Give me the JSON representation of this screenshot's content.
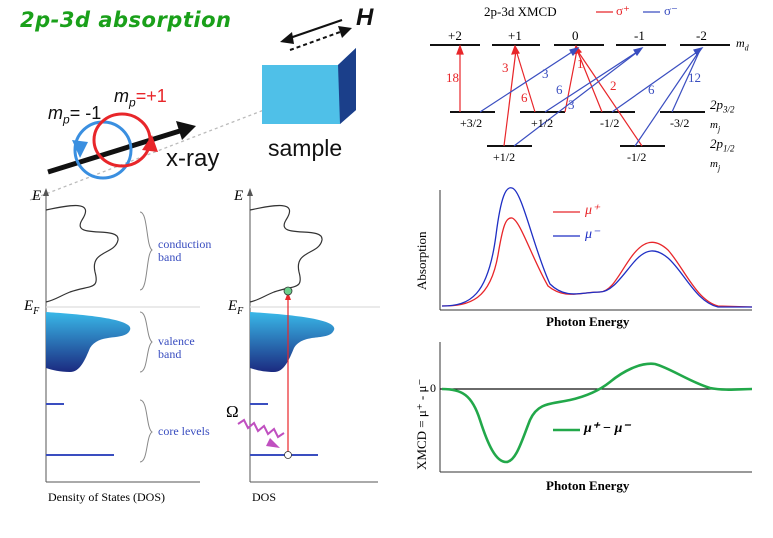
{
  "title": "2p-3d absorption",
  "field_label": "H",
  "x_ray_label": "x-ray",
  "sample_label": "sample",
  "mp_minus": "m",
  "mp_minus_sub": "p",
  "mp_minus_val": "= -1",
  "mp_plus": "m",
  "mp_plus_sub": "p",
  "mp_plus_val": "=+1",
  "level_diagram": {
    "title": "2p-3d XMCD",
    "legend_plus": "σ⁺",
    "legend_minus": "σ⁻",
    "md_levels": [
      "+2",
      "+1",
      "0",
      "-1",
      "-2"
    ],
    "md_label": "m",
    "md_sub": "d",
    "p32_levels": [
      "+3/2",
      "+1/2",
      "-1/2",
      "-3/2"
    ],
    "p32_label": "2p",
    "p32_sub": "3/2",
    "p12_levels": [
      "+1/2",
      "-1/2"
    ],
    "p12_label": "2p",
    "p12_sub": "1/2",
    "mj_label": "m",
    "mj_sub": "j",
    "red_numbers": [
      "18",
      "3",
      "6",
      "1",
      "2"
    ],
    "blue_numbers": [
      "3",
      "6",
      "3",
      "6",
      "12"
    ]
  },
  "dos_left": {
    "e_axis": "E",
    "ef_label": "E",
    "ef_sub": "F",
    "conduction": "conduction band",
    "conduction_1": "conduction",
    "conduction_2": "band",
    "valence_1": "valence",
    "valence_2": "band",
    "core": "core levels",
    "xlabel": "Density of States (DOS)"
  },
  "dos_right": {
    "e_axis": "E",
    "ef_label": "E",
    "ef_sub": "F",
    "omega": "Ω",
    "xlabel": "DOS"
  },
  "absorption_chart": {
    "ylabel": "Absorption",
    "xlabel": "Photon Energy",
    "legend": [
      "μ⁺",
      "μ⁻"
    ],
    "colors": {
      "mu_plus": "#e8262a",
      "mu_minus": "#1f2fc4"
    }
  },
  "xmcd_chart": {
    "ylabel": "XMCD = μ⁺ - μ⁻",
    "zero_label": "0",
    "xlabel": "Photon Energy",
    "legend": "μ⁺ − μ⁻",
    "color": "#22a84a"
  }
}
